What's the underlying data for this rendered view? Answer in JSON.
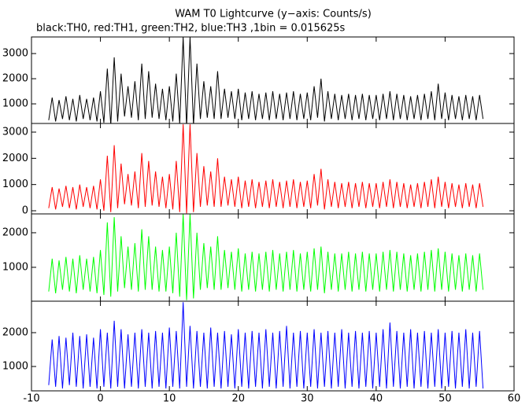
{
  "title": "WAM T0 Lightcurve (y−axis: Counts/s)",
  "subtitle": "black:TH0, red:TH1, green:TH2, blue:TH3 ,1bin = 0.015625s",
  "chart_data": [
    {
      "type": "line",
      "color": "#000000",
      "x": [
        -7.5,
        -7,
        -6.5,
        -6,
        -5.5,
        -5,
        -4.5,
        -4,
        -3.5,
        -3,
        -2.5,
        -2,
        -1.5,
        -1,
        -0.5,
        0,
        0.5,
        1,
        1.5,
        2,
        2.5,
        3,
        3.5,
        4,
        4.5,
        5,
        5.5,
        6,
        6.5,
        7,
        7.5,
        8,
        8.5,
        9,
        9.5,
        10,
        10.5,
        11,
        11.5,
        12,
        12.5,
        13,
        13.5,
        14,
        14.5,
        15,
        15.5,
        16,
        16.5,
        17,
        17.5,
        18,
        18.5,
        19,
        19.5,
        20,
        20.5,
        21,
        21.5,
        22,
        22.5,
        23,
        23.5,
        24,
        24.5,
        25,
        25.5,
        26,
        26.5,
        27,
        27.5,
        28,
        28.5,
        29,
        29.5,
        30,
        30.5,
        31,
        31.5,
        32,
        32.5,
        33,
        33.5,
        34,
        34.5,
        35,
        35.5,
        36,
        36.5,
        37,
        37.5,
        38,
        38.5,
        39,
        39.5,
        40,
        40.5,
        41,
        41.5,
        42,
        42.5,
        43,
        43.5,
        44,
        44.5,
        45,
        45.5,
        46,
        46.5,
        47,
        47.5,
        48,
        48.5,
        49,
        49.5,
        50,
        50.5,
        51,
        51.5,
        52,
        52.5,
        53,
        53.5,
        54,
        54.5,
        55,
        55.5
      ],
      "values": [
        350,
        1250,
        300,
        1150,
        400,
        1300,
        350,
        1200,
        300,
        1350,
        400,
        1200,
        350,
        1250,
        300,
        1500,
        250,
        2400,
        150,
        2850,
        300,
        2200,
        500,
        1700,
        450,
        1900,
        350,
        2600,
        400,
        2300,
        450,
        1800,
        400,
        1600,
        350,
        1700,
        300,
        2200,
        200,
        3650,
        100,
        3650,
        150,
        2600,
        400,
        1900,
        450,
        1700,
        400,
        2300,
        400,
        1600,
        450,
        1500,
        400,
        1600,
        350,
        1450,
        400,
        1500,
        350,
        1400,
        400,
        1450,
        350,
        1500,
        400,
        1400,
        350,
        1450,
        400,
        1500,
        350,
        1400,
        400,
        1450,
        350,
        1700,
        450,
        2000,
        300,
        1500,
        400,
        1400,
        350,
        1350,
        400,
        1400,
        350,
        1350,
        400,
        1400,
        350,
        1350,
        400,
        1350,
        350,
        1400,
        400,
        1500,
        350,
        1400,
        400,
        1350,
        350,
        1300,
        400,
        1350,
        350,
        1400,
        400,
        1500,
        350,
        1800,
        400,
        1450,
        350,
        1350,
        400,
        1300,
        350,
        1350,
        400,
        1300,
        350,
        1350,
        400
      ],
      "ylim": [
        220,
        3660
      ],
      "yticks": [
        1000,
        2000,
        3000
      ]
    },
    {
      "type": "line",
      "color": "#ff0000",
      "x": [
        -7.5,
        -7,
        -6.5,
        -6,
        -5.5,
        -5,
        -4.5,
        -4,
        -3.5,
        -3,
        -2.5,
        -2,
        -1.5,
        -1,
        -0.5,
        0,
        0.5,
        1,
        1.5,
        2,
        2.5,
        3,
        3.5,
        4,
        4.5,
        5,
        5.5,
        6,
        6.5,
        7,
        7.5,
        8,
        8.5,
        9,
        9.5,
        10,
        10.5,
        11,
        11.5,
        12,
        12.5,
        13,
        13.5,
        14,
        14.5,
        15,
        15.5,
        16,
        16.5,
        17,
        17.5,
        18,
        18.5,
        19,
        19.5,
        20,
        20.5,
        21,
        21.5,
        22,
        22.5,
        23,
        23.5,
        24,
        24.5,
        25,
        25.5,
        26,
        26.5,
        27,
        27.5,
        28,
        28.5,
        29,
        29.5,
        30,
        30.5,
        31,
        31.5,
        32,
        32.5,
        33,
        33.5,
        34,
        34.5,
        35,
        35.5,
        36,
        36.5,
        37,
        37.5,
        38,
        38.5,
        39,
        39.5,
        40,
        40.5,
        41,
        41.5,
        42,
        42.5,
        43,
        43.5,
        44,
        44.5,
        45,
        45.5,
        46,
        46.5,
        47,
        47.5,
        48,
        48.5,
        49,
        49.5,
        50,
        50.5,
        51,
        51.5,
        52,
        52.5,
        53,
        53.5,
        54,
        54.5,
        55,
        55.5
      ],
      "values": [
        100,
        900,
        50,
        850,
        150,
        950,
        100,
        900,
        50,
        1000,
        150,
        900,
        100,
        950,
        50,
        1200,
        0,
        2100,
        -50,
        2500,
        100,
        1800,
        250,
        1400,
        200,
        1500,
        100,
        2200,
        150,
        1900,
        200,
        1500,
        150,
        1300,
        100,
        1400,
        50,
        1900,
        -50,
        3300,
        -100,
        3300,
        -50,
        2200,
        150,
        1700,
        200,
        1500,
        150,
        2000,
        150,
        1300,
        200,
        1200,
        150,
        1300,
        100,
        1150,
        150,
        1200,
        100,
        1100,
        150,
        1150,
        100,
        1200,
        150,
        1100,
        100,
        1150,
        150,
        1200,
        100,
        1100,
        150,
        1150,
        100,
        1400,
        200,
        1600,
        50,
        1200,
        150,
        1100,
        100,
        1050,
        150,
        1100,
        100,
        1050,
        150,
        1100,
        100,
        1050,
        150,
        1050,
        100,
        1100,
        150,
        1200,
        100,
        1100,
        150,
        1050,
        100,
        1000,
        150,
        1050,
        100,
        1100,
        150,
        1200,
        100,
        1300,
        150,
        1100,
        100,
        1050,
        150,
        1000,
        100,
        1050,
        150,
        1000,
        100,
        1050,
        150
      ],
      "ylim": [
        -120,
        3330
      ],
      "yticks": [
        0,
        1000,
        2000,
        3000
      ]
    },
    {
      "type": "line",
      "color": "#00ff00",
      "x": [
        -7.5,
        -7,
        -6.5,
        -6,
        -5.5,
        -5,
        -4.5,
        -4,
        -3.5,
        -3,
        -2.5,
        -2,
        -1.5,
        -1,
        -0.5,
        0,
        0.5,
        1,
        1.5,
        2,
        2.5,
        3,
        3.5,
        4,
        4.5,
        5,
        5.5,
        6,
        6.5,
        7,
        7.5,
        8,
        8.5,
        9,
        9.5,
        10,
        10.5,
        11,
        11.5,
        12,
        12.5,
        13,
        13.5,
        14,
        14.5,
        15,
        15.5,
        16,
        16.5,
        17,
        17.5,
        18,
        18.5,
        19,
        19.5,
        20,
        20.5,
        21,
        21.5,
        22,
        22.5,
        23,
        23.5,
        24,
        24.5,
        25,
        25.5,
        26,
        26.5,
        27,
        27.5,
        28,
        28.5,
        29,
        29.5,
        30,
        30.5,
        31,
        31.5,
        32,
        32.5,
        33,
        33.5,
        34,
        34.5,
        35,
        35.5,
        36,
        36.5,
        37,
        37.5,
        38,
        38.5,
        39,
        39.5,
        40,
        40.5,
        41,
        41.5,
        42,
        42.5,
        43,
        43.5,
        44,
        44.5,
        45,
        45.5,
        46,
        46.5,
        47,
        47.5,
        48,
        48.5,
        49,
        49.5,
        50,
        50.5,
        51,
        51.5,
        52,
        52.5,
        53,
        53.5,
        54,
        54.5,
        55,
        55.5
      ],
      "values": [
        300,
        1250,
        250,
        1200,
        350,
        1300,
        300,
        1250,
        250,
        1350,
        350,
        1250,
        300,
        1300,
        250,
        1500,
        200,
        2300,
        150,
        2450,
        300,
        1900,
        400,
        1600,
        350,
        1700,
        300,
        2100,
        350,
        1900,
        350,
        1600,
        300,
        1500,
        300,
        1600,
        250,
        2000,
        150,
        2540,
        50,
        2540,
        100,
        2000,
        350,
        1700,
        400,
        1600,
        350,
        1900,
        350,
        1500,
        400,
        1450,
        350,
        1550,
        300,
        1400,
        350,
        1450,
        300,
        1400,
        350,
        1450,
        300,
        1500,
        350,
        1400,
        300,
        1450,
        350,
        1500,
        300,
        1400,
        350,
        1450,
        300,
        1550,
        350,
        1600,
        250,
        1450,
        350,
        1400,
        300,
        1400,
        350,
        1450,
        300,
        1400,
        350,
        1450,
        300,
        1400,
        350,
        1400,
        300,
        1450,
        350,
        1500,
        300,
        1450,
        350,
        1400,
        300,
        1350,
        350,
        1400,
        300,
        1450,
        350,
        1500,
        300,
        1550,
        350,
        1450,
        300,
        1400,
        350,
        1350,
        300,
        1400,
        350,
        1350,
        300,
        1400,
        350
      ],
      "ylim": [
        20,
        2545
      ],
      "yticks": [
        1000,
        2000
      ]
    },
    {
      "type": "line",
      "color": "#0000ff",
      "x": [
        -7.5,
        -7,
        -6.5,
        -6,
        -5.5,
        -5,
        -4.5,
        -4,
        -3.5,
        -3,
        -2.5,
        -2,
        -1.5,
        -1,
        -0.5,
        0,
        0.5,
        1,
        1.5,
        2,
        2.5,
        3,
        3.5,
        4,
        4.5,
        5,
        5.5,
        6,
        6.5,
        7,
        7.5,
        8,
        8.5,
        9,
        9.5,
        10,
        10.5,
        11,
        11.5,
        12,
        12.5,
        13,
        13.5,
        14,
        14.5,
        15,
        15.5,
        16,
        16.5,
        17,
        17.5,
        18,
        18.5,
        19,
        19.5,
        20,
        20.5,
        21,
        21.5,
        22,
        22.5,
        23,
        23.5,
        24,
        24.5,
        25,
        25.5,
        26,
        26.5,
        27,
        27.5,
        28,
        28.5,
        29,
        29.5,
        30,
        30.5,
        31,
        31.5,
        32,
        32.5,
        33,
        33.5,
        34,
        34.5,
        35,
        35.5,
        36,
        36.5,
        37,
        37.5,
        38,
        38.5,
        39,
        39.5,
        40,
        40.5,
        41,
        41.5,
        42,
        42.5,
        43,
        43.5,
        44,
        44.5,
        45,
        45.5,
        46,
        46.5,
        47,
        47.5,
        48,
        48.5,
        49,
        49.5,
        50,
        50.5,
        51,
        51.5,
        52,
        52.5,
        53,
        53.5,
        54,
        54.5,
        55,
        55.5
      ],
      "values": [
        450,
        1800,
        400,
        1900,
        350,
        1850,
        450,
        2000,
        400,
        1900,
        350,
        1950,
        400,
        1850,
        350,
        2100,
        400,
        2000,
        350,
        2350,
        400,
        2100,
        350,
        1950,
        400,
        2000,
        350,
        2100,
        400,
        2000,
        350,
        2050,
        400,
        2000,
        350,
        2150,
        400,
        2050,
        350,
        2900,
        400,
        2200,
        350,
        2050,
        400,
        2000,
        350,
        2150,
        400,
        2000,
        350,
        2050,
        400,
        1950,
        350,
        2100,
        400,
        2000,
        350,
        2050,
        400,
        2000,
        350,
        2100,
        400,
        2000,
        350,
        2050,
        400,
        2200,
        350,
        2000,
        400,
        2050,
        350,
        2000,
        400,
        2100,
        350,
        2000,
        400,
        2050,
        350,
        2000,
        400,
        2100,
        350,
        2000,
        400,
        2050,
        350,
        2000,
        400,
        2050,
        350,
        2000,
        400,
        2100,
        350,
        2300,
        400,
        2050,
        350,
        2000,
        400,
        2100,
        350,
        2000,
        400,
        2050,
        350,
        2000,
        400,
        2100,
        350,
        2000,
        400,
        2050,
        350,
        2000,
        400,
        2100,
        350,
        2000,
        400,
        2050,
        350
      ],
      "ylim": [
        280,
        2930
      ],
      "yticks": [
        1000,
        2000
      ],
      "xlim": [
        -10,
        60
      ],
      "xticks": [
        -10,
        0,
        10,
        20,
        30,
        40,
        50,
        60
      ]
    }
  ]
}
